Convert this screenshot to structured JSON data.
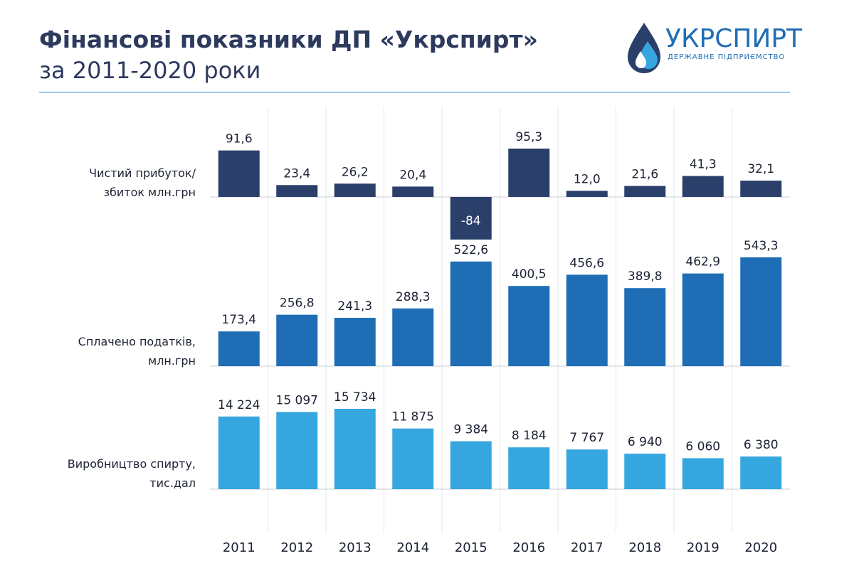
{
  "logo": {
    "name": "УКРСПИРТ",
    "tagline": "ДЕРЖАВНЕ ПІДПРИЄМСТВО"
  },
  "chart_data": {
    "type": "bar",
    "title": "Фінансові показники ДП «Укрспирт»",
    "subtitle": "за 2011-2020 роки",
    "categories": [
      "2011",
      "2012",
      "2013",
      "2014",
      "2015",
      "2016",
      "2017",
      "2018",
      "2019",
      "2020"
    ],
    "series": [
      {
        "name": "Чистий прибуток/\nзбиток млн.грн",
        "color": "#2b3f6b",
        "values": [
          91.6,
          23.4,
          26.2,
          20.4,
          -84,
          95.3,
          12.0,
          21.6,
          41.3,
          32.1
        ],
        "value_labels": [
          "91,6",
          "23,4",
          "26,2",
          "20,4",
          "-84",
          "95,3",
          "12,0",
          "21,6",
          "41,3",
          "32,1"
        ]
      },
      {
        "name": "Сплачено податків,\nмлн.грн",
        "color": "#1f6db5",
        "values": [
          173.4,
          256.8,
          241.3,
          288.3,
          522.6,
          400.5,
          456.6,
          389.8,
          462.9,
          543.3
        ],
        "value_labels": [
          "173,4",
          "256,8",
          "241,3",
          "288,3",
          "522,6",
          "400,5",
          "456,6",
          "389,8",
          "462,9",
          "543,3"
        ]
      },
      {
        "name": "Виробництво спирту,\nтис.дал",
        "color": "#36a6df",
        "values": [
          14224,
          15097,
          15734,
          11875,
          9384,
          8184,
          7767,
          6940,
          6060,
          6380
        ],
        "value_labels": [
          "14 224",
          "15 097",
          "15 734",
          "11 875",
          "9 384",
          "8 184",
          "7 767",
          "6 940",
          "6 060",
          "6 380"
        ]
      }
    ]
  }
}
